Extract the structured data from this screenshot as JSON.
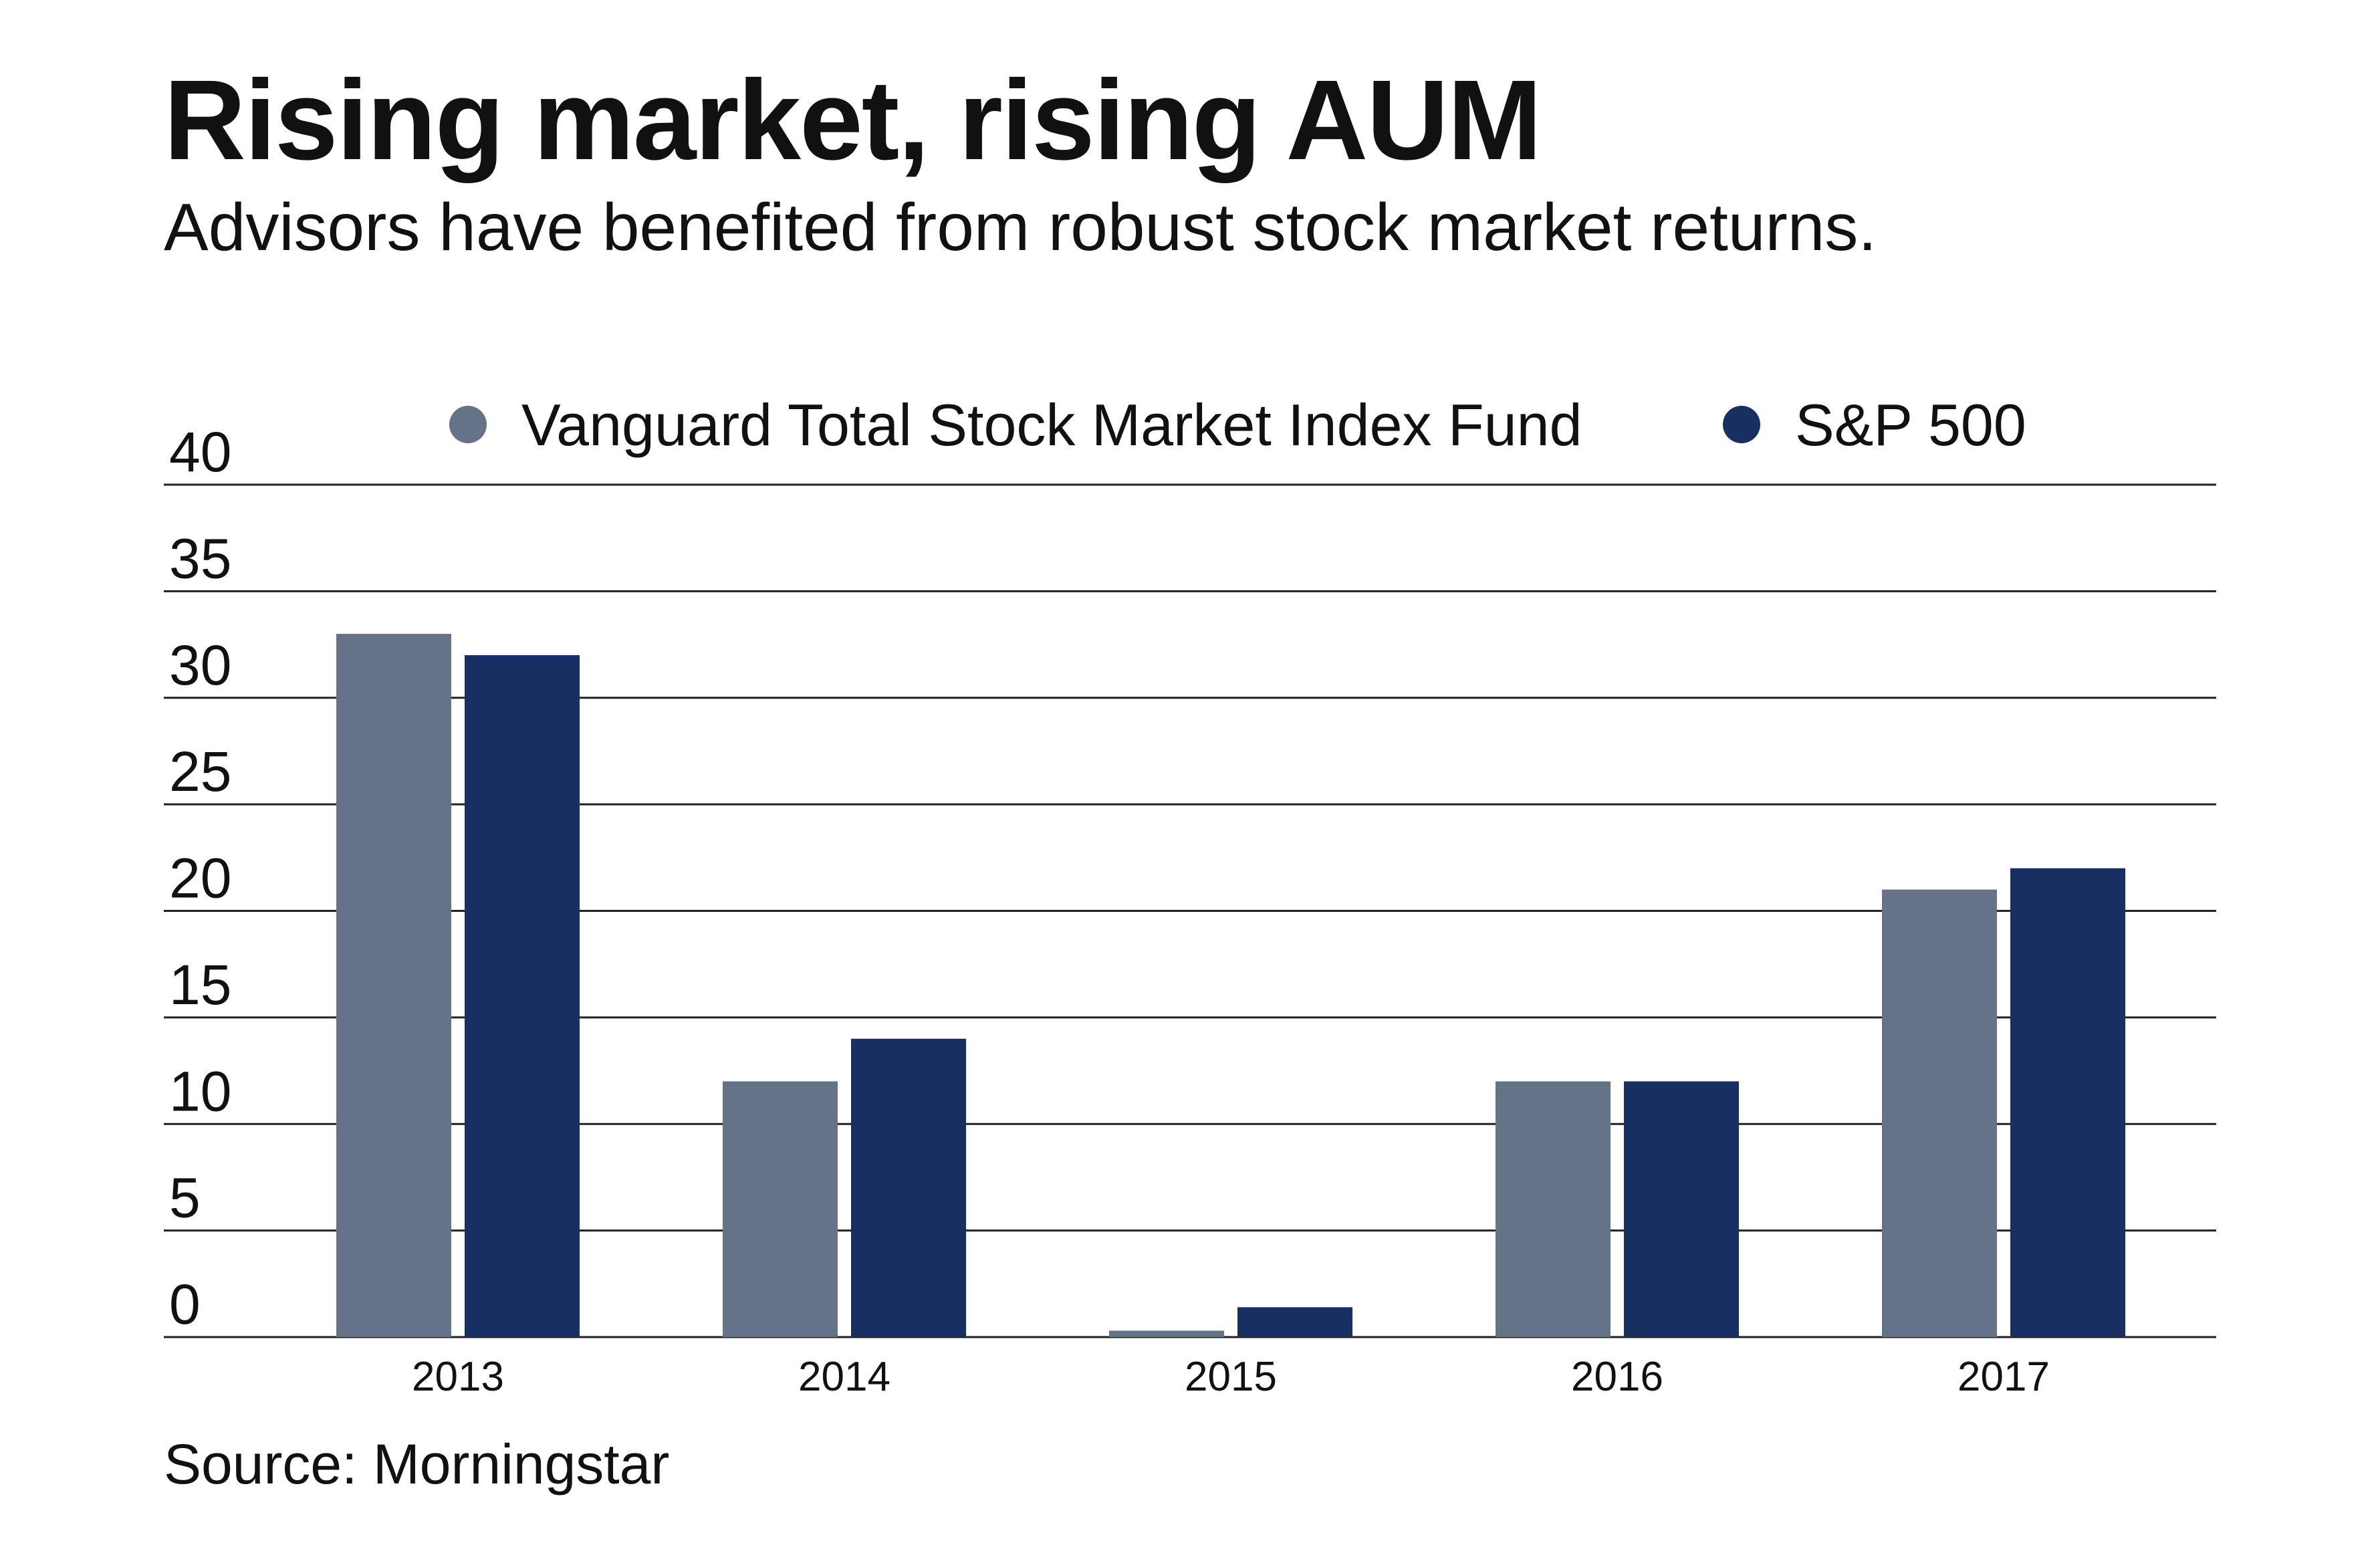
{
  "header": {
    "title": "Rising market, rising AUM",
    "subtitle": "Advisors have benefited from robust stock market returns."
  },
  "footer": {
    "source": "Source: Morningstar"
  },
  "chart_data": {
    "type": "bar",
    "categories": [
      "2013",
      "2014",
      "2015",
      "2016",
      "2017"
    ],
    "series": [
      {
        "name": "Vanguard Total Stock Market Index Fund",
        "values": [
          33,
          12,
          0.3,
          12,
          21
        ],
        "color": "#647387"
      },
      {
        "name": "S&P 500",
        "values": [
          32,
          14,
          1.4,
          12,
          22
        ],
        "color": "#182f64"
      }
    ],
    "y_ticks": [
      "0",
      "5",
      "10",
      "15",
      "20",
      "25",
      "30",
      "35",
      "40"
    ],
    "ylim": [
      0,
      40
    ],
    "grid": true,
    "legend_position": "top-center",
    "gridline_color": "#222222"
  }
}
